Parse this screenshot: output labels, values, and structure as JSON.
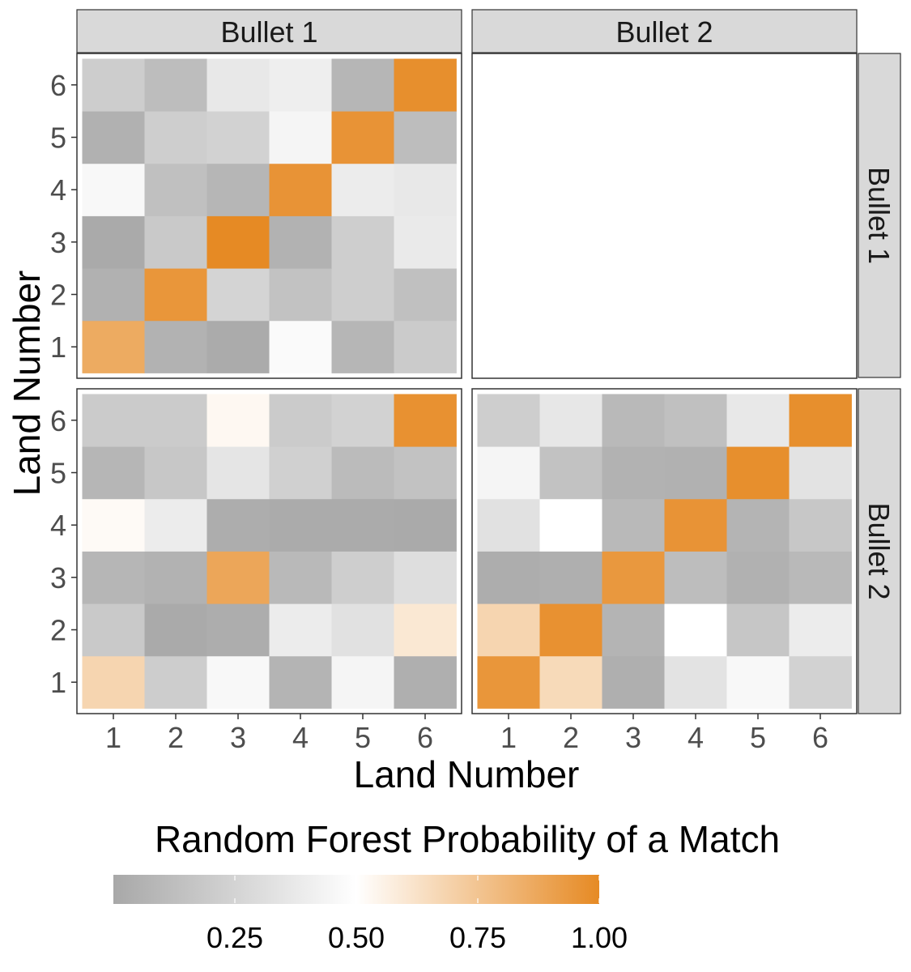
{
  "chart_data": {
    "type": "heatmap",
    "facet_cols": [
      "Bullet 1",
      "Bullet 2"
    ],
    "facet_rows": [
      "Bullet 1",
      "Bullet 2"
    ],
    "xlabel": "Land Number",
    "ylabel": "Land Number",
    "x_ticks": [
      "1",
      "2",
      "3",
      "4",
      "5",
      "6"
    ],
    "y_ticks": [
      "1",
      "2",
      "3",
      "4",
      "5",
      "6"
    ],
    "legend": {
      "title": "Random Forest Probability of a Match",
      "ticks": [
        0.25,
        0.5,
        0.75,
        1.0
      ],
      "tick_labels": [
        "0.25",
        "0.50",
        "0.75",
        "1.00"
      ],
      "range": [
        0.0,
        1.0
      ],
      "placement": "bottom"
    },
    "colors": {
      "low": "#a8a8a8",
      "mid": "#ffffff",
      "high": "#e68a24",
      "strip_fill": "#d9d9d9",
      "panel_border": "#333333"
    },
    "panels": [
      {
        "col": "Bullet 1",
        "row": "Bullet 1",
        "values": [
          [
            0.86,
            0.06,
            0.02,
            0.47,
            0.08,
            0.2
          ],
          [
            0.05,
            0.95,
            0.25,
            0.15,
            0.22,
            0.14
          ],
          [
            0.01,
            0.19,
            1.0,
            0.06,
            0.22,
            0.38
          ],
          [
            0.46,
            0.14,
            0.08,
            0.96,
            0.39,
            0.37
          ],
          [
            0.05,
            0.22,
            0.24,
            0.44,
            0.96,
            0.12
          ],
          [
            0.21,
            0.12,
            0.37,
            0.4,
            0.08,
            0.98
          ]
        ]
      },
      {
        "col": "Bullet 2",
        "row": "Bullet 1",
        "values": []
      },
      {
        "col": "Bullet 1",
        "row": "Bullet 2",
        "values": [
          [
            0.68,
            0.21,
            0.46,
            0.07,
            0.44,
            0.04
          ],
          [
            0.19,
            0.01,
            0.03,
            0.39,
            0.33,
            0.6
          ],
          [
            0.08,
            0.06,
            0.88,
            0.1,
            0.22,
            0.31
          ],
          [
            0.52,
            0.39,
            0.03,
            0.02,
            0.02,
            0.01
          ],
          [
            0.08,
            0.18,
            0.35,
            0.23,
            0.11,
            0.15
          ],
          [
            0.2,
            0.2,
            0.53,
            0.2,
            0.24,
            0.97
          ]
        ]
      },
      {
        "col": "Bullet 2",
        "row": "Bullet 2",
        "values": [
          [
            0.95,
            0.66,
            0.04,
            0.34,
            0.46,
            0.24
          ],
          [
            0.68,
            0.97,
            0.07,
            0.5,
            0.17,
            0.39
          ],
          [
            0.03,
            0.04,
            0.94,
            0.12,
            0.05,
            0.1
          ],
          [
            0.33,
            0.5,
            0.1,
            0.96,
            0.07,
            0.18
          ],
          [
            0.44,
            0.15,
            0.06,
            0.05,
            0.98,
            0.34
          ],
          [
            0.22,
            0.36,
            0.1,
            0.14,
            0.37,
            0.98
          ]
        ]
      }
    ]
  }
}
